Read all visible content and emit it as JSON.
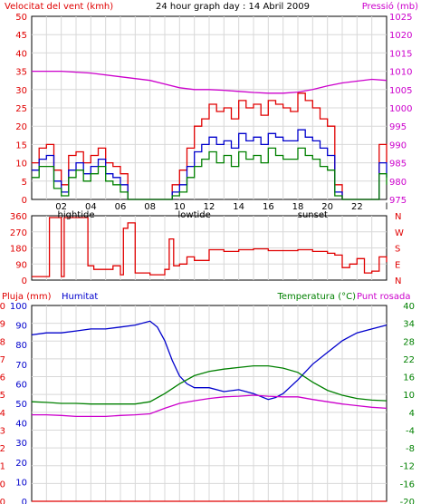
{
  "chart_data": [
    {
      "type": "line",
      "title": "24 hour graph day : 14 Abril 2009",
      "left_label": "Velocitat del vent (kmh)",
      "right_label": "Pressió (mb)",
      "y_left_ticks": [
        "0",
        "5",
        "10",
        "15",
        "20",
        "25",
        "30",
        "35",
        "40",
        "45",
        "50"
      ],
      "y_right_ticks": [
        "975",
        "980",
        "985",
        "990",
        "995",
        "1000",
        "1005",
        "1010",
        "1015",
        "1020",
        "1025"
      ],
      "ylim_left": [
        0,
        50
      ],
      "ylim_right": [
        975,
        1025
      ],
      "x_ticks": [
        "02",
        "04",
        "06",
        "08",
        "10",
        "12",
        "14",
        "16",
        "18",
        "20",
        "22",
        "l"
      ],
      "x_markers": [
        "hightide",
        "lowtide",
        "sunset"
      ],
      "xlim": [
        0,
        24
      ],
      "grid": true,
      "colors": {
        "gust": "#e00000",
        "wind": "#0000cc",
        "avg": "#008000",
        "pressure": "#cc00cc"
      },
      "series": [
        {
          "name": "Pressió (mb)",
          "axis": "right",
          "x": [
            0,
            2,
            4,
            6,
            8,
            9,
            10,
            11,
            12,
            13,
            14,
            15,
            16,
            17,
            18,
            19,
            20,
            21,
            22,
            23,
            24
          ],
          "y": [
            1010,
            1010,
            1009.5,
            1008.5,
            1007.5,
            1006.5,
            1005.5,
            1005,
            1005,
            1004.8,
            1004.5,
            1004.2,
            1004,
            1004,
            1004.3,
            1005,
            1006,
            1006.8,
            1007.3,
            1007.8,
            1007.5
          ]
        },
        {
          "axis": "left",
          "x": [
            0,
            0.5,
            1,
            1.5,
            2,
            2.5,
            3,
            3.5,
            4,
            4.5,
            5,
            5.5,
            6,
            6.5,
            7,
            7.5,
            8,
            8.5,
            9,
            9.5,
            10,
            10.5,
            11,
            11.5,
            12,
            12.5,
            13,
            13.5,
            14,
            14.5,
            15,
            15.5,
            16,
            16.5,
            17,
            17.5,
            18,
            18.5,
            19,
            19.5,
            20,
            20.5,
            21,
            21.5,
            22,
            22.5,
            23,
            23.5,
            24
          ],
          "y": [
            10,
            14,
            15,
            8,
            4,
            12,
            13,
            10,
            12,
            14,
            10,
            9,
            7,
            0,
            0,
            0,
            0,
            0,
            0,
            4,
            8,
            14,
            20,
            22,
            26,
            24,
            25,
            22,
            27,
            25,
            26,
            23,
            27,
            26,
            25,
            24,
            29,
            27,
            25,
            22,
            20,
            4,
            0,
            0,
            0,
            0,
            0,
            15,
            10
          ]
        },
        {
          "axis": "left",
          "x": [
            0,
            0.5,
            1,
            1.5,
            2,
            2.5,
            3,
            3.5,
            4,
            4.5,
            5,
            5.5,
            6,
            6.5,
            7,
            7.5,
            8,
            8.5,
            9,
            9.5,
            10,
            10.5,
            11,
            11.5,
            12,
            12.5,
            13,
            13.5,
            14,
            14.5,
            15,
            15.5,
            16,
            16.5,
            17,
            17.5,
            18,
            18.5,
            19,
            19.5,
            20,
            20.5,
            21,
            21.5,
            22,
            22.5,
            23,
            23.5,
            24
          ],
          "y": [
            8,
            11,
            12,
            5,
            2,
            8,
            10,
            7,
            9,
            11,
            7,
            6,
            4,
            0,
            0,
            0,
            0,
            0,
            0,
            2,
            4,
            9,
            13,
            15,
            17,
            15,
            16,
            14,
            18,
            16,
            17,
            15,
            18,
            17,
            16,
            16,
            19,
            17,
            16,
            14,
            12,
            2,
            0,
            0,
            0,
            0,
            0,
            10,
            6
          ]
        },
        {
          "axis": "left",
          "x": [
            0,
            0.5,
            1,
            1.5,
            2,
            2.5,
            3,
            3.5,
            4,
            4.5,
            5,
            5.5,
            6,
            6.5,
            7,
            7.5,
            8,
            8.5,
            9,
            9.5,
            10,
            10.5,
            11,
            11.5,
            12,
            12.5,
            13,
            13.5,
            14,
            14.5,
            15,
            15.5,
            16,
            16.5,
            17,
            17.5,
            18,
            18.5,
            19,
            19.5,
            20,
            20.5,
            21,
            21.5,
            22,
            22.5,
            23,
            23.5,
            24
          ],
          "y": [
            6,
            9,
            9,
            3,
            1,
            6,
            8,
            5,
            7,
            9,
            5,
            4,
            2,
            0,
            0,
            0,
            0,
            0,
            0,
            1,
            2,
            6,
            9,
            11,
            13,
            10,
            12,
            9,
            13,
            11,
            12,
            10,
            14,
            12,
            11,
            11,
            14,
            12,
            11,
            9,
            8,
            1,
            0,
            0,
            0,
            0,
            0,
            7,
            4
          ]
        }
      ]
    },
    {
      "type": "line",
      "y_left_ticks": [
        "0",
        "90",
        "180",
        "270",
        "360"
      ],
      "y_right_ticks": [
        "N",
        "E",
        "S",
        "W",
        "N"
      ],
      "ylim": [
        0,
        360
      ],
      "x_ticks": [],
      "xlim": [
        0,
        24
      ],
      "grid": true,
      "colors": {
        "dir": "#e00000"
      },
      "series": [
        {
          "axis": "left",
          "x": [
            0,
            1,
            1.2,
            1.8,
            2.0,
            2.2,
            2.5,
            3.5,
            3.8,
            4.2,
            5,
            5.5,
            6,
            6.2,
            6.5,
            7,
            8,
            8.5,
            9,
            9.3,
            9.6,
            10,
            10.5,
            11,
            12,
            13,
            14,
            15,
            16,
            17,
            18,
            19,
            20,
            20.5,
            21,
            21.5,
            22,
            22.5,
            23,
            23.5,
            24
          ],
          "y": [
            20,
            20,
            350,
            350,
            20,
            350,
            350,
            350,
            80,
            60,
            60,
            80,
            30,
            290,
            320,
            40,
            30,
            30,
            60,
            230,
            80,
            90,
            130,
            110,
            170,
            160,
            170,
            175,
            165,
            165,
            170,
            160,
            150,
            140,
            70,
            90,
            120,
            40,
            50,
            130,
            100
          ]
        }
      ]
    },
    {
      "type": "line",
      "left_label": "Pluja (mm)",
      "mid_label": "Humitat",
      "right_label": "Temperatura (°C)",
      "right_label2": "Punt rosada",
      "y_left_ticks": [
        "0",
        "0",
        "1",
        "2",
        "3",
        "4",
        "5",
        "6",
        "7",
        "8",
        "9",
        "10"
      ],
      "y_humid_ticks": [
        "0",
        "10",
        "20",
        "30",
        "40",
        "50",
        "60",
        "70",
        "80",
        "90",
        "100"
      ],
      "y_right_ticks": [
        "-20",
        "-16",
        "-12",
        "-8",
        "-4",
        "4",
        "10",
        "16",
        "22",
        "28",
        "34",
        "40"
      ],
      "ylim_humidity": [
        0,
        100
      ],
      "ylim_temp": [
        -20,
        40
      ],
      "x_ticks": [
        "02",
        "04",
        "06",
        "08",
        "10",
        "12",
        "14",
        "16",
        "18",
        "20",
        "22",
        "l"
      ],
      "x_markers": [
        "hightide",
        "lowtide",
        "sunset"
      ],
      "xlim": [
        0,
        24
      ],
      "grid": true,
      "colors": {
        "humidity": "#0000cc",
        "temperature": "#008000",
        "dewpoint": "#cc00cc",
        "rain": "#e00000"
      },
      "series": [
        {
          "name": "Pluja (mm)",
          "axis": "rain",
          "x": [
            0,
            24
          ],
          "y": [
            0,
            0
          ]
        },
        {
          "name": "Humitat",
          "axis": "humidity",
          "x": [
            0,
            1,
            2,
            3,
            4,
            5,
            6,
            7,
            8,
            8.5,
            9,
            9.5,
            10,
            10.5,
            11,
            12,
            13,
            14,
            15,
            16,
            16.5,
            17,
            18,
            19,
            20,
            21,
            22,
            23,
            24
          ],
          "y": [
            85,
            86,
            86,
            87,
            88,
            88,
            89,
            90,
            92,
            89,
            82,
            72,
            64,
            60,
            58,
            58,
            56,
            57,
            55,
            52,
            53,
            55,
            62,
            70,
            76,
            82,
            86,
            88,
            90
          ]
        },
        {
          "name": "Temperatura (°C)",
          "axis": "temp",
          "x": [
            0,
            1,
            2,
            3,
            4,
            5,
            6,
            7,
            8,
            9,
            10,
            11,
            12,
            13,
            14,
            15,
            16,
            17,
            18,
            19,
            20,
            21,
            22,
            23,
            24
          ],
          "y": [
            10.5,
            10.3,
            10,
            10,
            9.8,
            9.8,
            9.8,
            9.8,
            10.5,
            13,
            16,
            18.5,
            19.8,
            20.5,
            21,
            21.5,
            21.5,
            20.8,
            19.5,
            16.5,
            14,
            12.5,
            11.5,
            11,
            10.8
          ]
        },
        {
          "name": "Punt rosada",
          "axis": "temp",
          "x": [
            0,
            1,
            2,
            3,
            4,
            5,
            6,
            7,
            8,
            9,
            10,
            11,
            12,
            13,
            14,
            15,
            16,
            17,
            18,
            19,
            20,
            21,
            22,
            23,
            24
          ],
          "y": [
            6.5,
            6.5,
            6.3,
            6.0,
            6.0,
            6.0,
            6.3,
            6.5,
            6.8,
            8.5,
            10,
            10.8,
            11.5,
            12,
            12.2,
            12.5,
            12.2,
            12,
            12,
            11.2,
            10.5,
            9.8,
            9.3,
            8.8,
            8.5
          ]
        }
      ]
    }
  ]
}
